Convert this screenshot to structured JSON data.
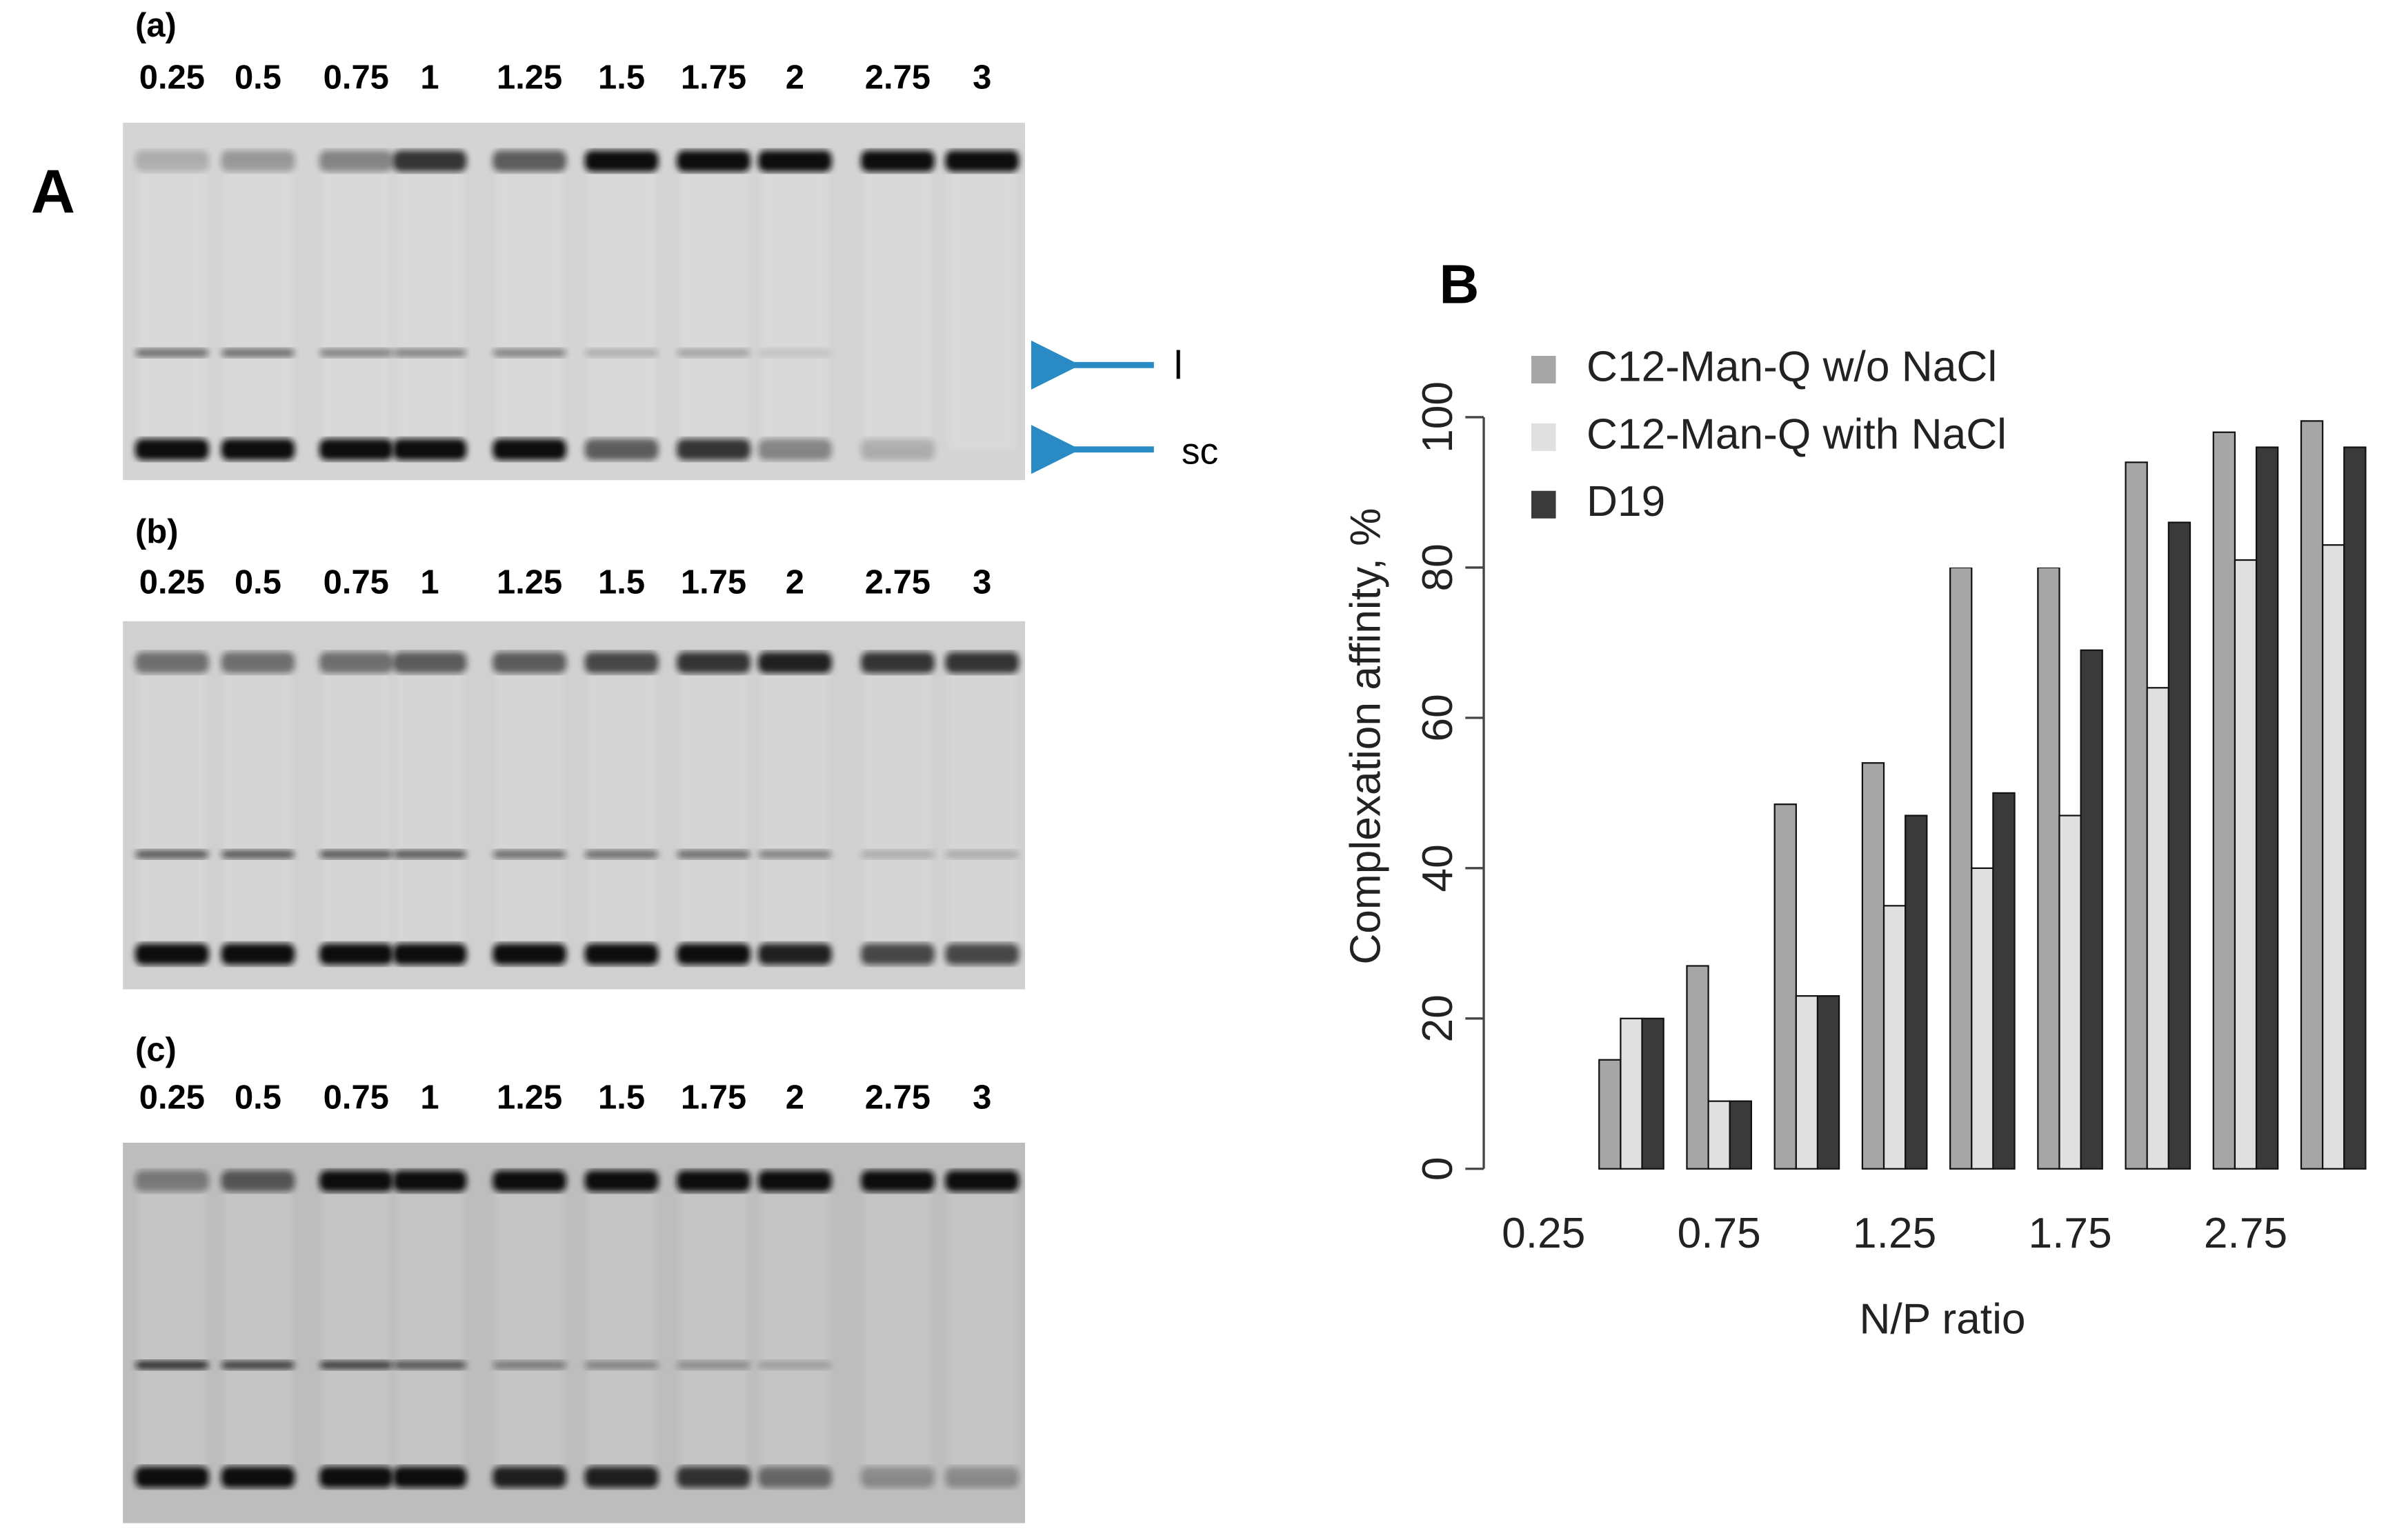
{
  "figure": {
    "panel_a": "A",
    "panel_b": "B"
  },
  "gels": [
    {
      "label": "(a)",
      "lanes": [
        "0.25",
        "0.5",
        "0.75",
        "1",
        "1.25",
        "1.5",
        "1.75",
        "2",
        "2.75",
        "3"
      ]
    },
    {
      "label": "(b)",
      "lanes": [
        "0.25",
        "0.5",
        "0.75",
        "1",
        "1.25",
        "1.5",
        "1.75",
        "2",
        "2.75",
        "3"
      ]
    },
    {
      "label": "(c)",
      "lanes": [
        "0.25",
        "0.5",
        "0.75",
        "1",
        "1.25",
        "1.5",
        "1.75",
        "2",
        "2.75",
        "3"
      ]
    }
  ],
  "band_labels": [
    "l",
    "sc"
  ],
  "chart_data": {
    "type": "bar",
    "xlabel": "N/P ratio",
    "ylabel": "Complexation affinity, %",
    "categories": [
      "0.25",
      null,
      "0.75",
      null,
      "1.25",
      null,
      "1.75",
      null,
      "2.75",
      null
    ],
    "series": [
      {
        "name": "C12-Man-Q w/o NaCl",
        "color": "#a6a6a6",
        "values": [
          0,
          14.5,
          27,
          48.5,
          54,
          80,
          80,
          94,
          98,
          99.5
        ]
      },
      {
        "name": "C12-Man-Q with NaCl",
        "color": "#e0e0e0",
        "values": [
          0,
          20,
          9,
          23,
          35,
          40,
          47,
          64,
          81,
          83
        ]
      },
      {
        "name": "D19",
        "color": "#3a3a3a",
        "values": [
          0,
          20,
          9,
          23,
          47,
          50,
          69,
          86,
          96,
          96
        ]
      }
    ],
    "ylim": [
      0,
      100
    ],
    "yticks": [
      0,
      20,
      40,
      60,
      80,
      100
    ],
    "grid": false,
    "legend": "top-left"
  }
}
